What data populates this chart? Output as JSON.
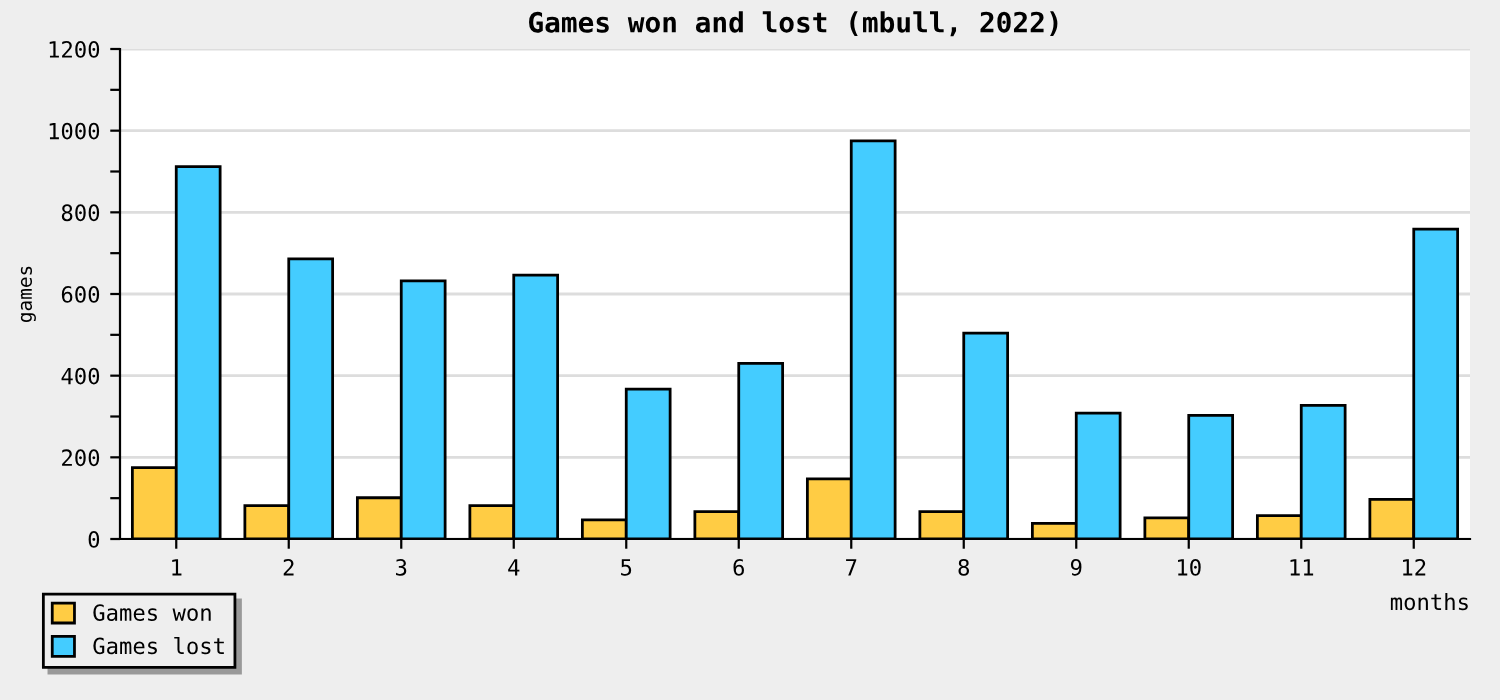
{
  "chart_data": {
    "type": "bar",
    "title": "Games won and lost (mbull, 2022)",
    "xlabel": "months",
    "ylabel": "games",
    "categories": [
      "1",
      "2",
      "3",
      "4",
      "5",
      "6",
      "7",
      "8",
      "9",
      "10",
      "11",
      "12"
    ],
    "series": [
      {
        "name": "Games won",
        "color": "#ffcc44",
        "values": [
          175,
          82,
          101,
          82,
          47,
          67,
          147,
          67,
          38,
          52,
          57,
          97
        ]
      },
      {
        "name": "Games lost",
        "color": "#44ccff",
        "values": [
          912,
          686,
          632,
          646,
          367,
          430,
          975,
          504,
          308,
          303,
          327,
          759
        ]
      }
    ],
    "ylim": [
      0,
      1200
    ],
    "yticks": [
      0,
      {
        "value": 100,
        "label": null
      },
      200,
      {
        "value": 300,
        "label": null
      },
      400,
      {
        "value": 500,
        "label": null
      },
      600,
      {
        "value": 700,
        "label": null
      },
      800,
      {
        "value": 900,
        "label": null
      },
      1000,
      {
        "value": 1100,
        "label": null
      },
      1200
    ],
    "grid": "y",
    "legend": "bottom left"
  }
}
